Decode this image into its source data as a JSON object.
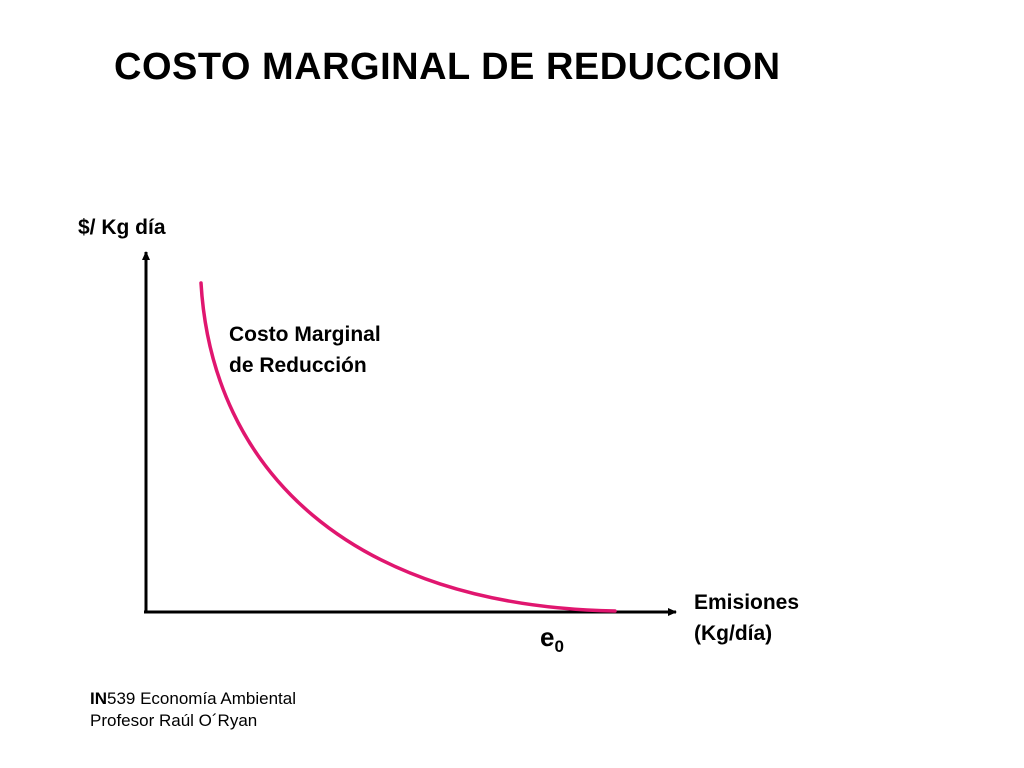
{
  "slide": {
    "title": "COSTO MARGINAL DE REDUCCION"
  },
  "diagram": {
    "y_axis_label": "$/ Kg día",
    "curve_label_line1": "Costo Marginal",
    "curve_label_line2": "de Reducción",
    "x_axis_label_line1": "Emisiones",
    "x_axis_label_line2": "(Kg/día)",
    "point_label_base": "e",
    "point_label_sub": "0",
    "curve_color": "#e0166f",
    "axis_color": "#000000"
  },
  "footer": {
    "course_code": "IN",
    "course_rest": "539 Economía Ambiental",
    "professor": "Profesor Raúl O´Ryan"
  }
}
